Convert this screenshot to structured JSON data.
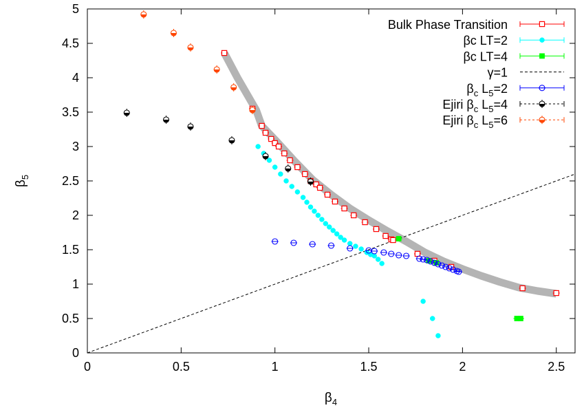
{
  "chart_data": {
    "type": "scatter",
    "xlabel": "β4",
    "ylabel": "β5",
    "xlim": [
      0,
      2.6
    ],
    "ylim": [
      0,
      5
    ],
    "x_ticks": [
      0,
      0.5,
      1,
      1.5,
      2,
      2.5
    ],
    "y_ticks": [
      0,
      0.5,
      1,
      1.5,
      2,
      2.5,
      3,
      3.5,
      4,
      4.5,
      5
    ],
    "x_tick_labels": [
      "0",
      "0.5",
      "1",
      "1.5",
      "2",
      "2.5"
    ],
    "y_tick_labels": [
      "0",
      "0.5",
      "1",
      "1.5",
      "2",
      "2.5",
      "3",
      "3.5",
      "4",
      "4.5",
      "5"
    ],
    "grid": false,
    "legend_position": "top-right",
    "band": {
      "color": "#b4b4b4",
      "points": [
        [
          0.73,
          4.36
        ],
        [
          0.8,
          4.0
        ],
        [
          0.9,
          3.53
        ],
        [
          0.93,
          3.3
        ],
        [
          1.0,
          3.1
        ],
        [
          1.1,
          2.8
        ],
        [
          1.2,
          2.52
        ],
        [
          1.3,
          2.3
        ],
        [
          1.4,
          2.1
        ],
        [
          1.5,
          1.93
        ],
        [
          1.6,
          1.77
        ],
        [
          1.7,
          1.62
        ],
        [
          1.8,
          1.46
        ],
        [
          1.9,
          1.33
        ],
        [
          2.0,
          1.22
        ],
        [
          2.1,
          1.12
        ],
        [
          2.2,
          1.03
        ],
        [
          2.3,
          0.95
        ],
        [
          2.4,
          0.9
        ],
        [
          2.5,
          0.86
        ]
      ]
    },
    "series": [
      {
        "name": "Bulk Phase Transition",
        "marker": "open-square",
        "color": "#ff0000",
        "points": [
          [
            0.73,
            4.36
          ],
          [
            0.88,
            3.55
          ],
          [
            0.93,
            3.3
          ],
          [
            0.95,
            3.2
          ],
          [
            0.98,
            3.11
          ],
          [
            1.0,
            3.05
          ],
          [
            1.02,
            3.0
          ],
          [
            1.05,
            2.9
          ],
          [
            1.08,
            2.8
          ],
          [
            1.12,
            2.7
          ],
          [
            1.16,
            2.6
          ],
          [
            1.19,
            2.5
          ],
          [
            1.22,
            2.45
          ],
          [
            1.24,
            2.4
          ],
          [
            1.28,
            2.3
          ],
          [
            1.32,
            2.2
          ],
          [
            1.37,
            2.1
          ],
          [
            1.42,
            2.0
          ],
          [
            1.48,
            1.9
          ],
          [
            1.54,
            1.8
          ],
          [
            1.59,
            1.7
          ],
          [
            1.62,
            1.65
          ],
          [
            1.63,
            1.64
          ],
          [
            1.76,
            1.44
          ],
          [
            1.85,
            1.34
          ],
          [
            1.94,
            1.25
          ],
          [
            2.32,
            0.94
          ],
          [
            2.5,
            0.87
          ]
        ]
      },
      {
        "name": "βc LT=2",
        "marker": "filled-circle",
        "color": "#00ffff",
        "points": [
          [
            0.91,
            3.0
          ],
          [
            0.94,
            2.9
          ],
          [
            0.97,
            2.8
          ],
          [
            1.0,
            2.7
          ],
          [
            1.03,
            2.6
          ],
          [
            1.06,
            2.5
          ],
          [
            1.09,
            2.42
          ],
          [
            1.12,
            2.34
          ],
          [
            1.15,
            2.26
          ],
          [
            1.17,
            2.19
          ],
          [
            1.19,
            2.12
          ],
          [
            1.21,
            2.06
          ],
          [
            1.23,
            2.0
          ],
          [
            1.25,
            1.94
          ],
          [
            1.27,
            1.88
          ],
          [
            1.29,
            1.83
          ],
          [
            1.31,
            1.78
          ],
          [
            1.33,
            1.73
          ],
          [
            1.35,
            1.68
          ],
          [
            1.37,
            1.64
          ],
          [
            1.4,
            1.59
          ],
          [
            1.43,
            1.55
          ],
          [
            1.46,
            1.51
          ],
          [
            1.49,
            1.46
          ],
          [
            1.51,
            1.43
          ],
          [
            1.53,
            1.41
          ],
          [
            1.55,
            1.36
          ],
          [
            1.57,
            1.3
          ],
          [
            1.79,
            0.75
          ],
          [
            1.84,
            0.5
          ],
          [
            1.87,
            0.25
          ]
        ]
      },
      {
        "name": "βc LT=4",
        "marker": "filled-square",
        "color": "#00ff00",
        "points": [
          [
            1.66,
            1.66
          ],
          [
            1.82,
            1.34
          ],
          [
            1.86,
            1.31
          ],
          [
            2.29,
            0.5
          ],
          [
            2.31,
            0.5
          ]
        ]
      },
      {
        "name": "γ=1",
        "line": "dashed",
        "color": "#000000",
        "points": [
          [
            0,
            0
          ],
          [
            2.6,
            2.6
          ]
        ]
      },
      {
        "name": "βc L5=2",
        "marker": "open-circle",
        "color": "#0000ff",
        "points": [
          [
            1.0,
            1.62
          ],
          [
            1.1,
            1.6
          ],
          [
            1.2,
            1.58
          ],
          [
            1.3,
            1.56
          ],
          [
            1.4,
            1.52
          ],
          [
            1.5,
            1.49
          ],
          [
            1.53,
            1.48
          ],
          [
            1.58,
            1.46
          ],
          [
            1.62,
            1.44
          ],
          [
            1.66,
            1.42
          ],
          [
            1.7,
            1.41
          ],
          [
            1.77,
            1.37
          ],
          [
            1.79,
            1.36
          ],
          [
            1.81,
            1.35
          ],
          [
            1.83,
            1.33
          ],
          [
            1.85,
            1.31
          ],
          [
            1.87,
            1.29
          ],
          [
            1.89,
            1.27
          ],
          [
            1.91,
            1.25
          ],
          [
            1.93,
            1.23
          ],
          [
            1.95,
            1.21
          ],
          [
            1.97,
            1.19
          ],
          [
            1.98,
            1.18
          ]
        ]
      },
      {
        "name": "Ejiri βc L5=4",
        "marker": "half-circle",
        "color": "#000000",
        "points": [
          [
            0.21,
            3.49
          ],
          [
            0.42,
            3.39
          ],
          [
            0.55,
            3.29
          ],
          [
            0.77,
            3.09
          ],
          [
            0.95,
            2.86
          ],
          [
            1.07,
            2.68
          ],
          [
            1.19,
            2.49
          ]
        ]
      },
      {
        "name": "Ejiri βc L5=6",
        "marker": "half-circle",
        "color": "#ff4500",
        "points": [
          [
            0.3,
            4.92
          ],
          [
            0.46,
            4.65
          ],
          [
            0.55,
            4.44
          ],
          [
            0.69,
            4.12
          ],
          [
            0.78,
            3.86
          ],
          [
            0.88,
            3.53
          ]
        ]
      }
    ]
  }
}
